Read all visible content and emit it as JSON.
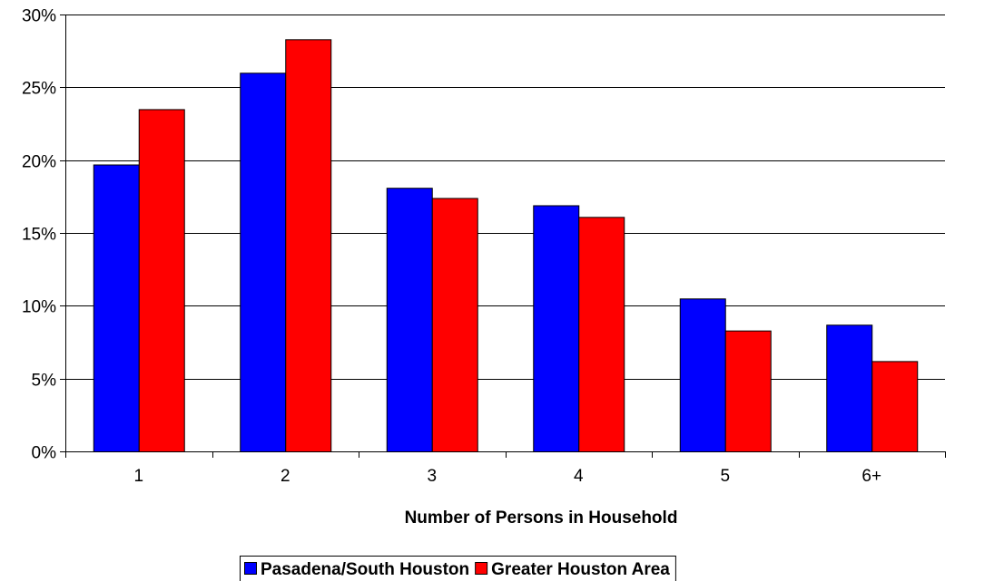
{
  "chart_data": {
    "type": "bar",
    "title": "",
    "xlabel": "Number of Persons in Household",
    "ylabel": "",
    "categories": [
      "1",
      "2",
      "3",
      "4",
      "5",
      "6+"
    ],
    "series": [
      {
        "name": "Pasadena/South Houston",
        "color": "#0000ff",
        "values": [
          19.7,
          26.0,
          18.1,
          16.9,
          10.5,
          8.7
        ]
      },
      {
        "name": "Greater Houston Area",
        "color": "#ff0000",
        "values": [
          23.5,
          28.3,
          17.4,
          16.1,
          8.3,
          6.2
        ]
      }
    ],
    "ylim": [
      0,
      30
    ],
    "yticks": [
      0,
      5,
      10,
      15,
      20,
      25,
      30
    ],
    "ytick_labels": [
      "0%",
      "5%",
      "10%",
      "15%",
      "20%",
      "25%",
      "30%"
    ],
    "grid": true,
    "legend_position": "bottom-center"
  }
}
